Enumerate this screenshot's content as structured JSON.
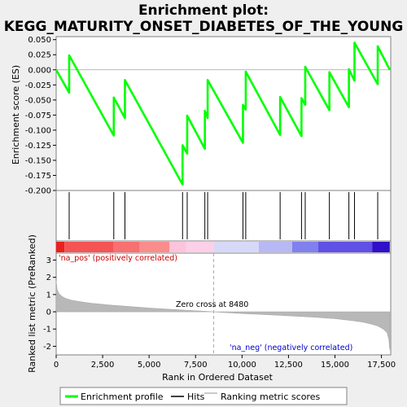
{
  "title_line1": "Enrichment plot:",
  "title_line2": "KEGG_MATURITY_ONSET_DIABETES_OF_THE_YOUNG",
  "chart_data": {
    "type": "line",
    "es_panel": {
      "ylabel": "Enrichment score (ES)",
      "ylim": [
        -0.2,
        0.055
      ],
      "yticks": [
        0.05,
        0.025,
        0.0,
        -0.025,
        -0.05,
        -0.075,
        -0.1,
        -0.125,
        -0.15,
        -0.175,
        -0.2
      ],
      "ytick_labels": [
        "0.050",
        "0.025",
        "0.000",
        "-0.025",
        "-0.050",
        "-0.075",
        "-0.100",
        "-0.125",
        "-0.150",
        "-0.175",
        "-0.200"
      ],
      "series": [
        {
          "name": "Enrichment profile",
          "x": [
            0,
            700,
            700,
            3100,
            3100,
            3700,
            3700,
            6800,
            6800,
            7050,
            7050,
            8000,
            8000,
            8150,
            8150,
            10050,
            10050,
            10200,
            10200,
            12050,
            12050,
            13200,
            13200,
            13400,
            13400,
            14700,
            14700,
            15750,
            15750,
            16050,
            16050,
            17300,
            17300,
            17950
          ],
          "y": [
            0.0,
            -0.038,
            0.024,
            -0.109,
            -0.046,
            -0.08,
            -0.017,
            -0.19,
            -0.125,
            -0.139,
            -0.076,
            -0.131,
            -0.068,
            -0.08,
            -0.017,
            -0.121,
            -0.058,
            -0.066,
            -0.003,
            -0.108,
            -0.045,
            -0.11,
            -0.047,
            -0.058,
            0.005,
            -0.067,
            -0.004,
            -0.062,
            0.001,
            -0.018,
            0.045,
            -0.024,
            0.039,
            0.0
          ]
        }
      ]
    },
    "hits": {
      "name": "Hits",
      "x": [
        700,
        3100,
        3700,
        6800,
        7050,
        8000,
        8150,
        10050,
        10200,
        12050,
        13200,
        13400,
        14700,
        15750,
        16050,
        17300
      ]
    },
    "ranked_panel": {
      "ylabel": "Ranked list metric (PreRanked)",
      "ylim": [
        -2.5,
        3.4
      ],
      "yticks": [
        3,
        2,
        1,
        0,
        -1,
        -2
      ],
      "ytick_labels": [
        "3",
        "2",
        "1",
        "0",
        "-1",
        "-2"
      ],
      "series_name": "Ranking metric scores",
      "profile_x": [
        0,
        50,
        150,
        300,
        500,
        800,
        1200,
        2000,
        3000,
        4000,
        5000,
        6000,
        7000,
        8000,
        8480,
        9000,
        10000,
        11000,
        12000,
        13000,
        14000,
        15000,
        16000,
        16500,
        17000,
        17300,
        17600,
        17800,
        17900,
        17950
      ],
      "profile_y": [
        1.8,
        1.3,
        1.05,
        0.9,
        0.78,
        0.68,
        0.6,
        0.48,
        0.38,
        0.3,
        0.22,
        0.15,
        0.09,
        0.03,
        0.0,
        -0.04,
        -0.1,
        -0.15,
        -0.2,
        -0.26,
        -0.32,
        -0.4,
        -0.52,
        -0.6,
        -0.72,
        -0.82,
        -1.0,
        -1.2,
        -1.6,
        -2.2
      ],
      "zero_cross_x": 8480,
      "zero_cross_label": "Zero cross at 8480",
      "pos_label": "'na_pos' (positively correlated)",
      "neg_label": "'na_neg' (negatively correlated)"
    },
    "x_axis": {
      "xlabel": "Rank in Ordered Dataset",
      "xlim": [
        0,
        18000
      ],
      "xticks": [
        0,
        2500,
        5000,
        7500,
        10000,
        12500,
        15000,
        17500
      ],
      "xtick_labels": [
        "0",
        "2,500",
        "5,000",
        "7,500",
        "10,000",
        "12,500",
        "15,000",
        "17,500"
      ]
    },
    "heatmap_segments": [
      {
        "from": 0,
        "to": 450,
        "color": "#e8221e"
      },
      {
        "from": 450,
        "to": 3100,
        "color": "#f45454"
      },
      {
        "from": 3100,
        "to": 4500,
        "color": "#f87070"
      },
      {
        "from": 4500,
        "to": 6100,
        "color": "#fa8c8c"
      },
      {
        "from": 6100,
        "to": 7000,
        "color": "#fcc4dc"
      },
      {
        "from": 7000,
        "to": 8500,
        "color": "#fcd0e8"
      },
      {
        "from": 8500,
        "to": 10900,
        "color": "#d8d8f8"
      },
      {
        "from": 10900,
        "to": 12700,
        "color": "#b8b8f4"
      },
      {
        "from": 12700,
        "to": 14100,
        "color": "#8080ee"
      },
      {
        "from": 14100,
        "to": 17000,
        "color": "#6050e6"
      },
      {
        "from": 17000,
        "to": 17950,
        "color": "#3010c8"
      }
    ],
    "legend": [
      "Enrichment profile",
      "Hits",
      "Ranking metric scores"
    ],
    "colors": {
      "profile": "#00ff00",
      "hits": "#000000",
      "ranking_fill": "#b8b8b8",
      "pos_label": "#cc0000",
      "neg_label": "#0000cc"
    }
  }
}
